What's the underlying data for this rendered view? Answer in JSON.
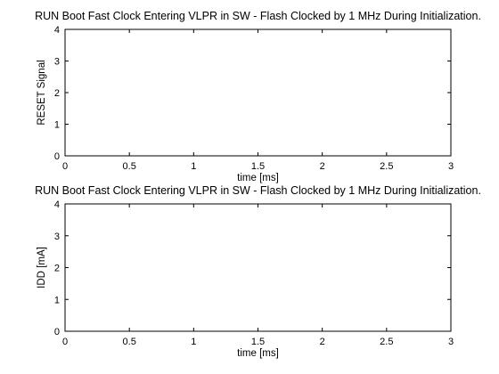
{
  "chart_data": [
    {
      "type": "line",
      "title": "RUN Boot Fast Clock Entering VLPR in SW - Flash Clocked by 1 MHz During Initialization.",
      "xlabel": "time [ms]",
      "ylabel": "RESET Signal",
      "xlim": [
        0,
        3
      ],
      "ylim": [
        0,
        4
      ],
      "xticks": [
        0,
        0.5,
        1,
        1.5,
        2,
        2.5,
        3
      ],
      "xtick_labels": [
        "0",
        "0.5",
        "1",
        "1.5",
        "2",
        "2.5",
        "3"
      ],
      "yticks": [
        0,
        1,
        2,
        3,
        4
      ],
      "ytick_labels": [
        "0",
        "1",
        "2",
        "3",
        "4"
      ],
      "grid": true,
      "series": [
        {
          "color": "#00ee00",
          "x": [
            0,
            0.08,
            0.1,
            0.15,
            0.2,
            0.25,
            0.3,
            0.35,
            0.4,
            0.45,
            0.5,
            0.53,
            0.55,
            0.56,
            0.57,
            0.58,
            0.6,
            0.62,
            0.64,
            0.65,
            0.7,
            1.0,
            1.5,
            2.0,
            2.25,
            2.26,
            2.27,
            2.3,
            2.35,
            2.4,
            2.42,
            2.43,
            2.44,
            2.45,
            2.46,
            2.47,
            2.48,
            2.5,
            2.6,
            2.8,
            3.0
          ],
          "y": [
            0.2,
            0.2,
            0.24,
            0.32,
            0.42,
            0.52,
            0.62,
            0.7,
            0.78,
            0.86,
            0.93,
            0.98,
            0.92,
            1.0,
            0.88,
            0.96,
            0.75,
            0.55,
            0.38,
            0.27,
            0.24,
            0.22,
            0.2,
            0.2,
            0.2,
            0.2,
            3.3,
            3.45,
            3.42,
            3.44,
            3.43,
            3.4,
            2.0,
            0.4,
            0.2,
            0.25,
            3.42,
            3.45,
            3.44,
            3.44,
            3.44
          ]
        }
      ]
    },
    {
      "type": "line",
      "title": "RUN Boot Fast Clock Entering VLPR in SW - Flash Clocked by 1 MHz During Initialization.",
      "xlabel": "time [ms]",
      "ylabel": "IDD [mA]",
      "xlim": [
        0,
        3
      ],
      "ylim": [
        0,
        4
      ],
      "xticks": [
        0,
        0.5,
        1,
        1.5,
        2,
        2.5,
        3
      ],
      "xtick_labels": [
        "0",
        "0.5",
        "1",
        "1.5",
        "2",
        "2.5",
        "3"
      ],
      "yticks": [
        0,
        1,
        2,
        3,
        4
      ],
      "ytick_labels": [
        "0",
        "1",
        "2",
        "3",
        "4"
      ],
      "grid": true,
      "series": [
        {
          "color": "#dd0000",
          "x": [
            0,
            0.1,
            0.18,
            0.2,
            0.25,
            0.3,
            0.35,
            0.4,
            0.45,
            0.5,
            0.52,
            0.55,
            0.6,
            0.63,
            0.67,
            0.7,
            0.75,
            0.78,
            0.8,
            0.85,
            0.9,
            0.95,
            0.97,
            0.98,
            0.99,
            1.0,
            1.01,
            1.02,
            1.05,
            1.08,
            1.1,
            1.15,
            1.2,
            1.3,
            1.4,
            1.45,
            1.47,
            1.5,
            1.55,
            1.6,
            1.7,
            1.8,
            1.85,
            1.87,
            1.9,
            1.95,
            2.0,
            2.1,
            2.2,
            2.25,
            2.27,
            2.28,
            2.3,
            2.32,
            2.33,
            2.35,
            2.37,
            2.38,
            2.4,
            2.42,
            2.43,
            2.45,
            2.47,
            2.48,
            2.49,
            2.5,
            2.55,
            2.6,
            2.8,
            3.0
          ],
          "y": [
            0.2,
            0.22,
            0.25,
            0.4,
            0.55,
            0.6,
            0.62,
            0.65,
            0.7,
            0.85,
            0.9,
            0.95,
            1.1,
            1.25,
            1.3,
            1.45,
            1.55,
            1.3,
            1.1,
            1.15,
            1.12,
            1.15,
            2.0,
            2.5,
            3.0,
            3.3,
            3.0,
            2.9,
            2.8,
            2.7,
            2.5,
            2.4,
            2.35,
            2.45,
            2.55,
            2.7,
            2.8,
            2.6,
            2.55,
            2.45,
            2.5,
            2.55,
            2.7,
            2.4,
            2.3,
            2.25,
            2.2,
            2.3,
            2.25,
            2.5,
            2.0,
            1.8,
            1.5,
            1.2,
            1.4,
            1.1,
            1.3,
            0.7,
            1.2,
            0.5,
            1.5,
            1.0,
            1.8,
            0.6,
            1.2,
            0.5,
            0.48,
            0.45,
            0.45,
            0.45
          ]
        }
      ]
    }
  ]
}
